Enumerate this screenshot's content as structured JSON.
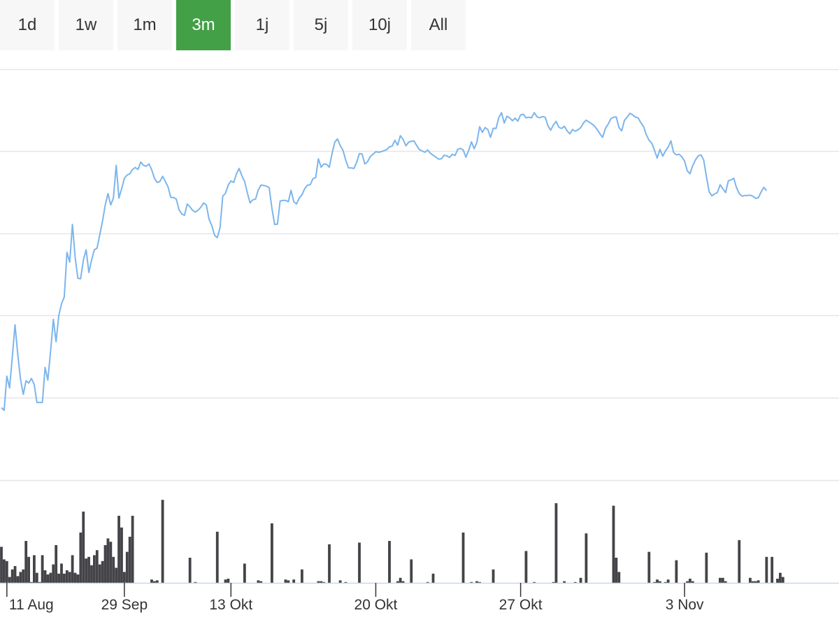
{
  "range_selector": {
    "buttons": [
      "1d",
      "1w",
      "1m",
      "3m",
      "1j",
      "5j",
      "10j",
      "All"
    ],
    "selected": "3m",
    "active_color": "#43a047"
  },
  "chart_data": [
    {
      "type": "line",
      "series_color": "#7cb5ec",
      "ylim": [
        0,
        100
      ],
      "grid": true,
      "x_tick_labels": [
        "11 Aug",
        "29 Sep",
        "13 Okt",
        "20 Okt",
        "27 Okt",
        "3 Nov"
      ],
      "x_tick_positions": [
        2,
        45,
        84,
        137,
        190,
        250
      ],
      "x_range": [
        0,
        306
      ],
      "values": [
        6.8,
        6.0,
        16.5,
        12.9,
        22.4,
        32.3,
        23.0,
        15.5,
        10.9,
        15.1,
        14.4,
        15.8,
        14.0,
        8.4,
        8.4,
        8.4,
        19.2,
        15.3,
        24.3,
        34.0,
        27.1,
        35.2,
        38.8,
        40.9,
        54.6,
        51.6,
        63.2,
        53.0,
        46.6,
        46.5,
        52.3,
        55.4,
        48.4,
        52.2,
        55.4,
        55.9,
        60.0,
        64.2,
        69.1,
        72.7,
        69.2,
        71.3,
        81.4,
        71.3,
        74.2,
        77.4,
        78.4,
        78.8,
        80.1,
        80.7,
        80.1,
        82.4,
        81.4,
        81.1,
        81.8,
        80.0,
        77.4,
        76.1,
        76.4,
        78.0,
        76.4,
        74.7,
        71.5,
        71.5,
        71.0,
        67.7,
        66.4,
        66.0,
        69.5,
        68.6,
        67.5,
        67.0,
        67.6,
        68.5,
        69.8,
        69.2,
        64.8,
        62.8,
        59.9,
        59.1,
        62.2,
        71.9,
        72.8,
        75.3,
        76.6,
        76.1,
        78.7,
        80.4,
        78.2,
        76.4,
        72.9,
        69.8,
        70.8,
        71.0,
        73.8,
        75.3,
        75.2,
        75.0,
        74.5,
        68.2,
        63.2,
        63.3,
        70.4,
        70.6,
        70.6,
        70.2,
        73.7,
        70.2,
        69.5,
        71.3,
        72.3,
        74.2,
        75.3,
        75.4,
        77.3,
        77.6,
        83.4,
        80.8,
        81.8,
        81.7,
        80.8,
        85.0,
        88.5,
        89.5,
        87.4,
        86.0,
        83.0,
        80.6,
        80.6,
        80.4,
        82.3,
        85.0,
        84.9,
        81.8,
        82.5,
        84.1,
        84.8,
        85.6,
        85.4,
        85.6,
        85.9,
        86.2,
        87.1,
        87.3,
        89.1,
        87.6,
        90.5,
        89.4,
        87.4,
        88.5,
        88.8,
        88.9,
        87.4,
        86.2,
        85.8,
        85.4,
        86.1,
        85.1,
        84.5,
        83.9,
        83.3,
        83.4,
        84.5,
        84.3,
        83.8,
        84.8,
        84.4,
        86.3,
        86.6,
        86.1,
        83.9,
        86.0,
        88.6,
        86.5,
        88.5,
        93.3,
        91.5,
        93.0,
        92.4,
        90.0,
        92.8,
        92.7,
        96.0,
        97.6,
        94.4,
        96.5,
        96.0,
        95.1,
        95.9,
        95.0,
        96.9,
        97.1,
        96.0,
        96.2,
        96.0,
        97.6,
        96.3,
        96.0,
        96.4,
        96.2,
        93.6,
        92.2,
        93.8,
        94.9,
        93.1,
        92.7,
        93.4,
        92.0,
        91.1,
        92.4,
        91.9,
        92.3,
        93.0,
        94.4,
        95.3,
        94.7,
        94.2,
        93.5,
        92.4,
        91.1,
        90.0,
        92.7,
        94.0,
        95.7,
        96.2,
        96.3,
        93.0,
        92.0,
        95.2,
        96.2,
        97.4,
        96.9,
        96.2,
        96.0,
        94.5,
        93.3,
        90.8,
        89.1,
        88.2,
        86.0,
        83.6,
        86.3,
        84.2,
        85.8,
        87.0,
        88.9,
        85.3,
        84.6,
        84.8,
        84.0,
        82.7,
        79.7,
        78.8,
        81.3,
        83.1,
        84.3,
        84.6,
        83.0,
        77.9,
        73.2,
        72.0,
        72.6,
        73.0,
        75.4,
        74.2,
        73.0,
        76.6,
        76.9,
        77.4,
        74.5,
        72.7,
        71.9,
        72.1,
        72.1,
        72.2,
        71.9,
        71.2,
        71.4,
        73.2,
        74.6,
        73.6
      ]
    },
    {
      "type": "bar",
      "bar_color": "#434348",
      "ylim": [
        0,
        100
      ],
      "grid": false,
      "x_range": [
        0,
        306
      ],
      "bars": [
        [
          0,
          43
        ],
        [
          1,
          28
        ],
        [
          2,
          26
        ],
        [
          3,
          7
        ],
        [
          4,
          16
        ],
        [
          5,
          20
        ],
        [
          6,
          8
        ],
        [
          7,
          13
        ],
        [
          8,
          16
        ],
        [
          9,
          50
        ],
        [
          10,
          31
        ],
        [
          11,
          1
        ],
        [
          12,
          33
        ],
        [
          13,
          12
        ],
        [
          14,
          1
        ],
        [
          15,
          33
        ],
        [
          16,
          15
        ],
        [
          17,
          10
        ],
        [
          18,
          12
        ],
        [
          19,
          22
        ],
        [
          20,
          45
        ],
        [
          21,
          11
        ],
        [
          22,
          23
        ],
        [
          23,
          11
        ],
        [
          24,
          15
        ],
        [
          25,
          13
        ],
        [
          26,
          33
        ],
        [
          27,
          12
        ],
        [
          28,
          10
        ],
        [
          29,
          60
        ],
        [
          30,
          85
        ],
        [
          31,
          29
        ],
        [
          32,
          31
        ],
        [
          33,
          21
        ],
        [
          34,
          33
        ],
        [
          35,
          39
        ],
        [
          36,
          22
        ],
        [
          37,
          26
        ],
        [
          38,
          45
        ],
        [
          39,
          53
        ],
        [
          40,
          49
        ],
        [
          41,
          31
        ],
        [
          42,
          18
        ],
        [
          43,
          80
        ],
        [
          44,
          66
        ],
        [
          45,
          13
        ],
        [
          46,
          37
        ],
        [
          47,
          55
        ],
        [
          48,
          80
        ],
        [
          55,
          4
        ],
        [
          56,
          2
        ],
        [
          57,
          3
        ],
        [
          59,
          99
        ],
        [
          69,
          30
        ],
        [
          71,
          1
        ],
        [
          79,
          61
        ],
        [
          82,
          4
        ],
        [
          83,
          5
        ],
        [
          89,
          23
        ],
        [
          94,
          3
        ],
        [
          95,
          2
        ],
        [
          99,
          71
        ],
        [
          104,
          4
        ],
        [
          105,
          3
        ],
        [
          107,
          4
        ],
        [
          110,
          16
        ],
        [
          116,
          2
        ],
        [
          117,
          2
        ],
        [
          118,
          1
        ],
        [
          120,
          46
        ],
        [
          124,
          3
        ],
        [
          126,
          1
        ],
        [
          131,
          48
        ],
        [
          142,
          50
        ],
        [
          145,
          2
        ],
        [
          146,
          6
        ],
        [
          147,
          2
        ],
        [
          150,
          28
        ],
        [
          156,
          1
        ],
        [
          158,
          11
        ],
        [
          169,
          60
        ],
        [
          172,
          1
        ],
        [
          174,
          2
        ],
        [
          175,
          1
        ],
        [
          180,
          16
        ],
        [
          192,
          38
        ],
        [
          195,
          1
        ],
        [
          202,
          1
        ],
        [
          203,
          95
        ],
        [
          206,
          2
        ],
        [
          210,
          1
        ],
        [
          212,
          6
        ],
        [
          214,
          59
        ],
        [
          224,
          92
        ],
        [
          225,
          30
        ],
        [
          226,
          13
        ],
        [
          237,
          37
        ],
        [
          239,
          1
        ],
        [
          240,
          4
        ],
        [
          241,
          2
        ],
        [
          243,
          1
        ],
        [
          244,
          4
        ],
        [
          247,
          27
        ],
        [
          251,
          2
        ],
        [
          252,
          5
        ],
        [
          253,
          2
        ],
        [
          258,
          36
        ],
        [
          263,
          6
        ],
        [
          264,
          6
        ],
        [
          265,
          2
        ],
        [
          270,
          51
        ],
        [
          274,
          6
        ],
        [
          275,
          2
        ],
        [
          276,
          2
        ],
        [
          277,
          3
        ],
        [
          280,
          31
        ],
        [
          282,
          31
        ],
        [
          284,
          5
        ],
        [
          285,
          12
        ],
        [
          286,
          7
        ]
      ]
    }
  ]
}
